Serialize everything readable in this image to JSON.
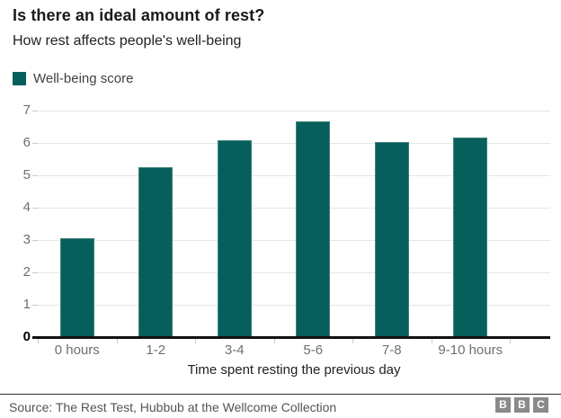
{
  "header": {
    "title": "Is there an ideal amount of rest?",
    "subtitle": "How rest affects people's well-being"
  },
  "legend": {
    "label": "Well-being score",
    "color": "#065F5B"
  },
  "chart_data": {
    "type": "bar",
    "title": "Is there an ideal amount of rest?",
    "subtitle": "How rest affects people's well-being",
    "categories": [
      "0 hours",
      "1-2",
      "3-4",
      "5-6",
      "7-8",
      "9-10 hours"
    ],
    "series": [
      {
        "name": "Well-being score",
        "values": [
          3.06,
          5.25,
          6.07,
          6.67,
          6.03,
          6.18
        ]
      }
    ],
    "xlabel": "Time spent resting the previous day",
    "ylabel": "",
    "ylim": [
      0,
      7
    ],
    "yticks": [
      0,
      1,
      2,
      3,
      4,
      5,
      6,
      7
    ],
    "grid": true,
    "legend_position": "top-left",
    "bar_color": "#065F5B",
    "gridline_color": "#e5e5e5",
    "axis_line_color": "#111111"
  },
  "footer": {
    "source": "Source: The Rest Test, Hubbub at the Wellcome Collection",
    "logo_letters": [
      "B",
      "B",
      "C"
    ]
  }
}
